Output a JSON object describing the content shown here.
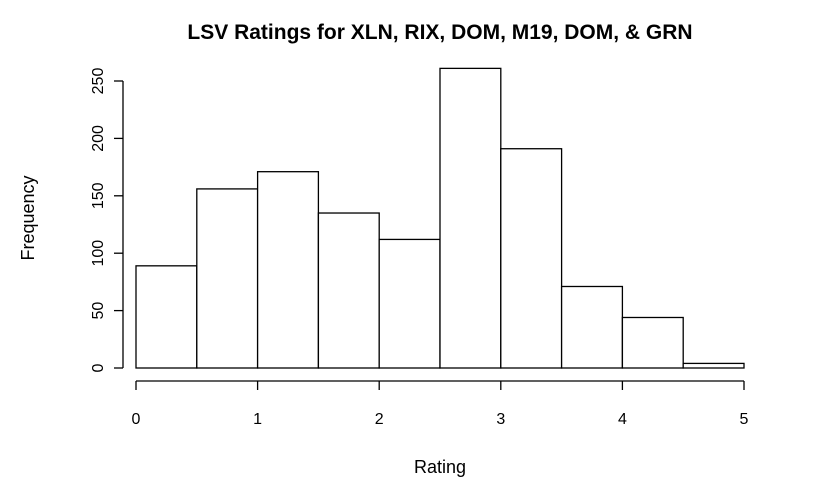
{
  "chart_data": {
    "type": "bar",
    "title": "LSV Ratings for XLN, RIX, DOM, M19, DOM, & GRN",
    "xlabel": "Rating",
    "ylabel": "Frequency",
    "bin_edges": [
      0,
      0.5,
      1,
      1.5,
      2,
      2.5,
      3,
      3.5,
      4,
      4.5,
      5
    ],
    "values": [
      89,
      156,
      171,
      135,
      112,
      261,
      191,
      71,
      44,
      4
    ],
    "xlim": [
      0,
      5
    ],
    "ylim": [
      0,
      250
    ],
    "x_ticks": [
      0,
      1,
      2,
      3,
      4,
      5
    ],
    "y_ticks": [
      0,
      50,
      100,
      150,
      200,
      250
    ],
    "grid": false,
    "bar_fill": "#ffffff",
    "bar_stroke": "#000000"
  }
}
